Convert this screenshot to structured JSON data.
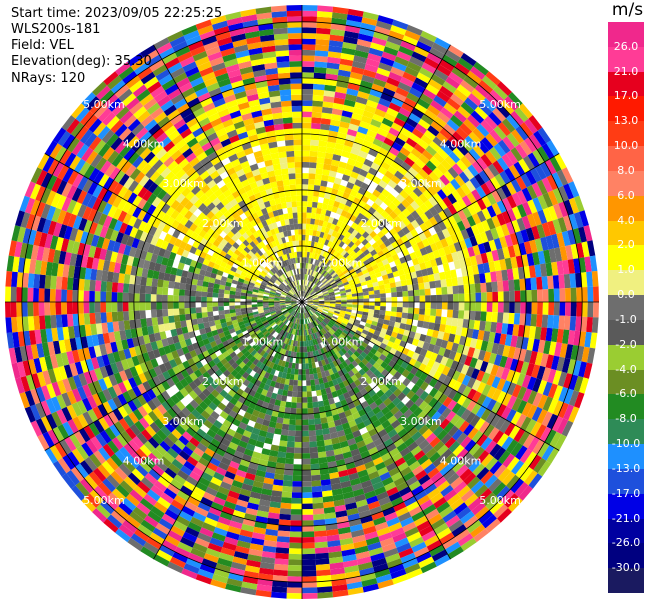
{
  "header": {
    "start_time": "Start time: 2023/09/05 22:25:25",
    "instrument": "WLS200s-181",
    "field": "Field: VEL",
    "elevation": "Elevation(deg): 35.30",
    "nrays": "NRays: 120"
  },
  "chart_data": {
    "type": "heatmap",
    "projection": "polar-ppi",
    "field": "VEL",
    "units": "m/s",
    "nrays": 120,
    "elevation_deg": 35.3,
    "range_ring_labels": [
      "1.00km",
      "2.00km",
      "3.00km",
      "4.00km",
      "5.00km"
    ],
    "range_rings_km": [
      1,
      2,
      3,
      4,
      5
    ],
    "max_range_km": 5.3,
    "spokes_deg": [
      0,
      30,
      60,
      90,
      120,
      150,
      180,
      210,
      240,
      270,
      300,
      330
    ],
    "colorbar": {
      "title": "m/s",
      "ticks": [
        "26.0",
        "21.0",
        "17.0",
        "13.0",
        "10.0",
        "8.0",
        "6.0",
        "4.0",
        "2.0",
        "1.0",
        "0.0",
        "-1.0",
        "-2.0",
        "-4.0",
        "-6.0",
        "-8.0",
        "-10.0",
        "-13.0",
        "-17.0",
        "-21.0",
        "-26.0",
        "-30.0"
      ],
      "colors": [
        "#f0288c",
        "#ff3c96",
        "#e6001e",
        "#ff1a00",
        "#ff3c14",
        "#ff6446",
        "#ff8264",
        "#ff9600",
        "#ffc800",
        "#ffff00",
        "#f0f080",
        "#6e6e6e",
        "#5a5a5a",
        "#9acd32",
        "#6b8e23",
        "#228b22",
        "#2e8b57",
        "#1e90ff",
        "#1e50dc",
        "#0000e6",
        "#0000a0",
        "#000080",
        "#1a1a60"
      ]
    }
  }
}
